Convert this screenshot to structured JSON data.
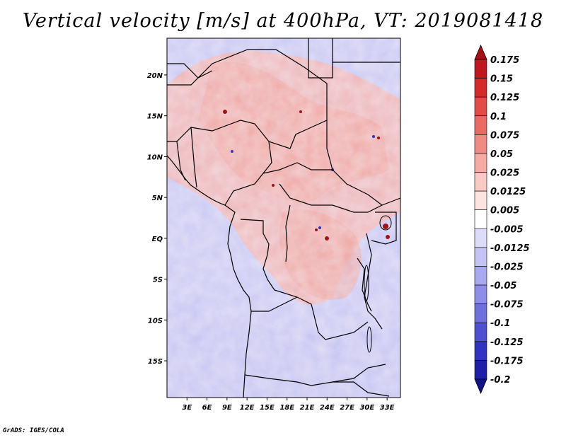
{
  "title": "Vertical velocity [m/s] at 400hPa, VT: 2019081418",
  "credit": "GrADS: IGES/COLA",
  "map": {
    "lat_range": [
      -19.5,
      24.5
    ],
    "lon_range": [
      0,
      35
    ],
    "lat_ticks": [
      {
        "value": 20,
        "label": "20N"
      },
      {
        "value": 15,
        "label": "15N"
      },
      {
        "value": 10,
        "label": "10N"
      },
      {
        "value": 5,
        "label": "5N"
      },
      {
        "value": 0,
        "label": "EQ"
      },
      {
        "value": -5,
        "label": "5S"
      },
      {
        "value": -10,
        "label": "10S"
      },
      {
        "value": -15,
        "label": "15S"
      }
    ],
    "lon_ticks": [
      {
        "value": 3,
        "label": "3E"
      },
      {
        "value": 6,
        "label": "6E"
      },
      {
        "value": 9,
        "label": "9E"
      },
      {
        "value": 12,
        "label": "12E"
      },
      {
        "value": 15,
        "label": "15E"
      },
      {
        "value": 18,
        "label": "18E"
      },
      {
        "value": 21,
        "label": "21E"
      },
      {
        "value": 24,
        "label": "24E"
      },
      {
        "value": 27,
        "label": "27E"
      },
      {
        "value": 30,
        "label": "30E"
      },
      {
        "value": 33,
        "label": "33E"
      }
    ]
  },
  "colorbar": {
    "labels": [
      "0.175",
      "0.15",
      "0.125",
      "0.1",
      "0.075",
      "0.05",
      "0.025",
      "0.0125",
      "0.005",
      "-0.005",
      "-0.0125",
      "-0.025",
      "-0.05",
      "-0.075",
      "-0.1",
      "-0.125",
      "-0.175",
      "-0.2"
    ],
    "colors": [
      "#a50f15",
      "#c0161d",
      "#d62a2a",
      "#e34b46",
      "#ea6a63",
      "#f08a82",
      "#f5aaa3",
      "#f9c9c3",
      "#fde4e0",
      "#ffffff",
      "#dcdcfa",
      "#c3c3f5",
      "#a9a9ef",
      "#8e8ee8",
      "#6f6fde",
      "#4f4fd2",
      "#3232c2",
      "#1e1ea8",
      "#12128a"
    ]
  }
}
